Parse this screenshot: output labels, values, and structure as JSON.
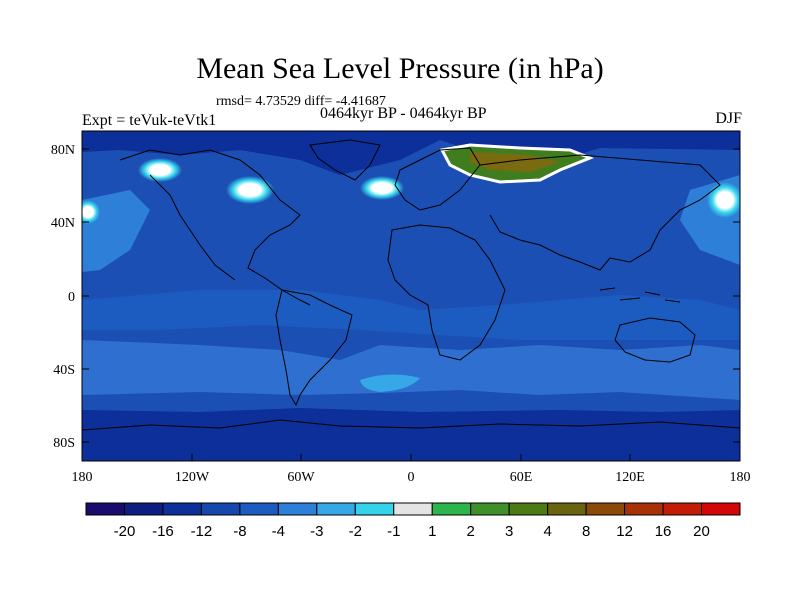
{
  "title": "Mean Sea Level Pressure (in hPa)",
  "stats_line": "rmsd= 4.73529 diff= -4.41687",
  "experiment": "Expt = teVuk-teVtk1",
  "period": "0464kyr BP - 0464kyr BP",
  "season": "DJF",
  "map": {
    "lat_ticks": [
      "80N",
      "40N",
      "0",
      "40S",
      "80S"
    ],
    "lon_ticks": [
      "180",
      "120W",
      "60W",
      "0",
      "60E",
      "120E",
      "180"
    ],
    "colors": {
      "ocean_base": "#1c4fb4",
      "deep_blue": "#0c2f9a",
      "mid_blue": "#2e6fd0",
      "light_blue": "#3aa3e6",
      "cyan": "#38d9ee",
      "positive_green": "#3f7d1e",
      "positive_olive": "#7a6a10",
      "coast": "#000000"
    }
  },
  "colorbar": {
    "labels": [
      "-20",
      "-16",
      "-12",
      "-8",
      "-4",
      "-3",
      "-2",
      "-1",
      "1",
      "2",
      "3",
      "4",
      "8",
      "12",
      "16",
      "20"
    ],
    "colors": [
      "#1a0c6e",
      "#0e1e80",
      "#0c2f9a",
      "#1547ad",
      "#1c5cc0",
      "#2e7fd8",
      "#36a8e8",
      "#34d3ea",
      "#e4e4e4",
      "#2bb54a",
      "#3f8f2a",
      "#4e7a16",
      "#6a6410",
      "#8c4a08",
      "#a83206",
      "#c21c06",
      "#d20808"
    ]
  }
}
